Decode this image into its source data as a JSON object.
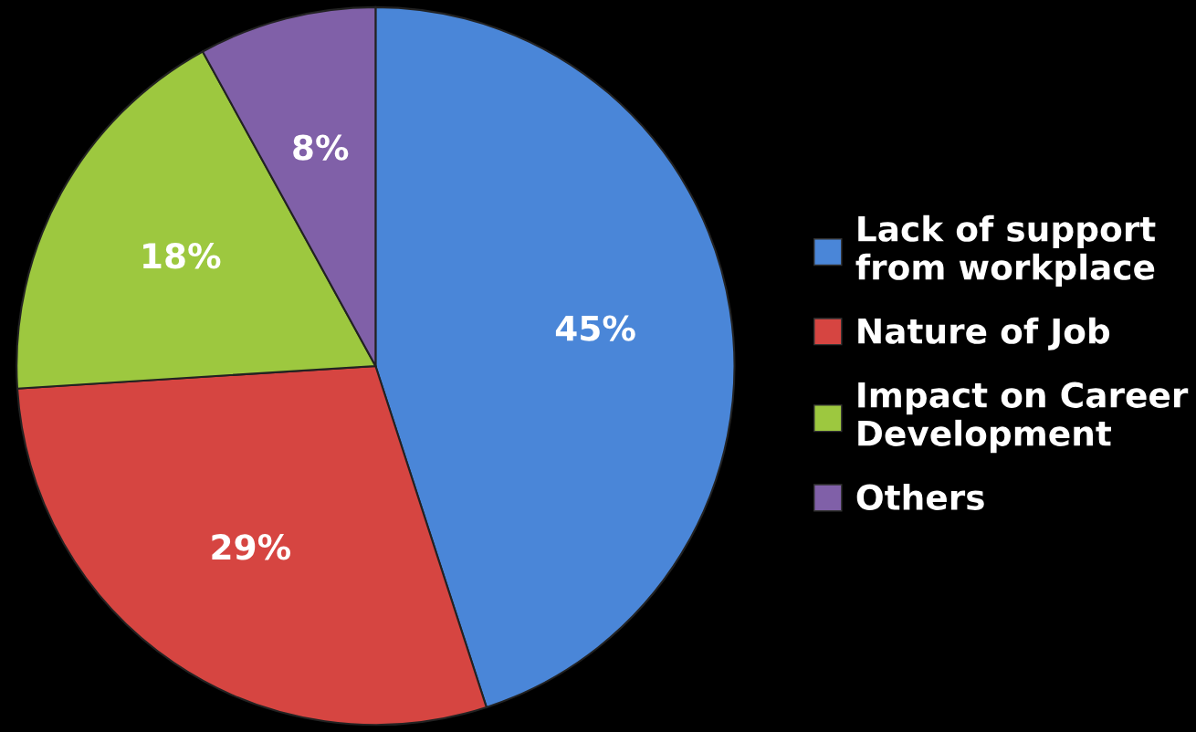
{
  "chart_data": {
    "type": "pie",
    "categories": [
      "Lack of support\nfrom workplace",
      "Nature of Job",
      "Impact on Career\nDevelopment",
      "Others"
    ],
    "values": [
      45,
      29,
      18,
      8
    ],
    "colors": [
      "#4a86d8",
      "#d64541",
      "#9dc83f",
      "#8060a8"
    ],
    "value_labels": [
      "45%",
      "29%",
      "18%",
      "8%"
    ],
    "legend": "right"
  }
}
